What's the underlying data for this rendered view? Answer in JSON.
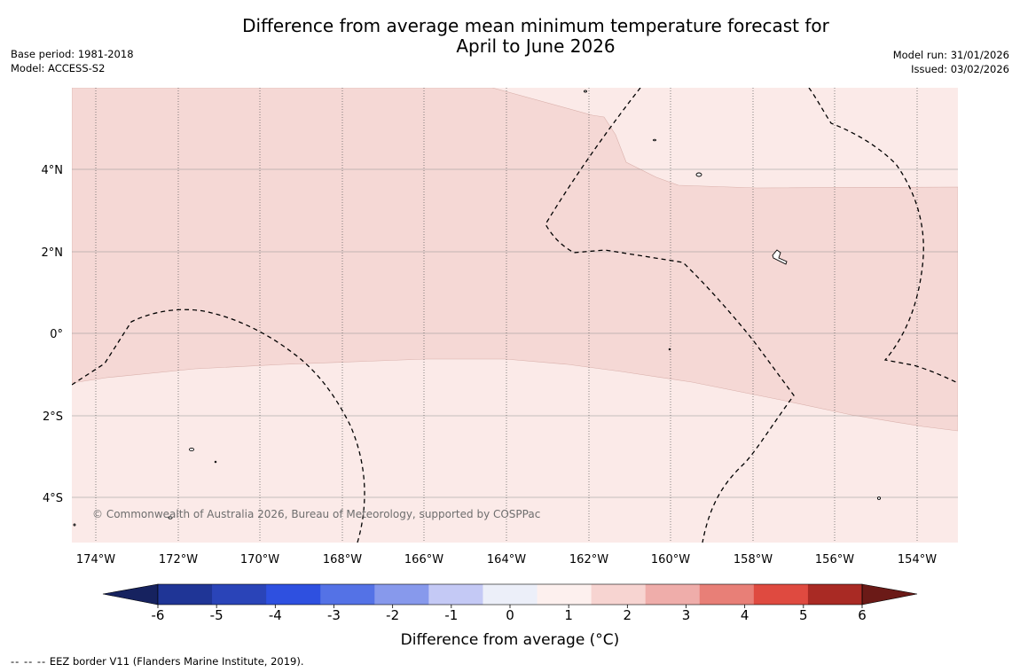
{
  "title": {
    "line1": "Difference from average mean minimum temperature forecast for",
    "line2": "April to June 2026"
  },
  "meta": {
    "base_period": "Base period: 1981-2018",
    "model": "Model: ACCESS-S2",
    "model_run": "Model run: 31/01/2026",
    "issued": "Issued: 03/02/2026"
  },
  "map": {
    "lat_labels": [
      "4°N",
      "2°N",
      "0°",
      "2°S",
      "4°S"
    ],
    "lon_labels": [
      "174°W",
      "172°W",
      "170°W",
      "168°W",
      "166°W",
      "164°W",
      "162°W",
      "160°W",
      "158°W",
      "156°W",
      "154°W"
    ],
    "copyright": "© Commonwealth of Australia 2026, Bureau of Meteorology, supported by COSPPac",
    "fill_colors": {
      "band_0_1": "#fbeae8",
      "band_1_2": "#f5d8d5"
    }
  },
  "colorbar": {
    "label": "Difference from average (°C)",
    "ticks": [
      "-6",
      "-5",
      "-4",
      "-3",
      "-2",
      "-1",
      "0",
      "1",
      "2",
      "3",
      "4",
      "5",
      "6"
    ],
    "colors": [
      "#1f3596",
      "#2a44b8",
      "#2e50e0",
      "#5472e6",
      "#8799ec",
      "#c4c9f5",
      "#eceff9",
      "#fdf0ee",
      "#f7d4d1",
      "#efadaa",
      "#e87f77",
      "#df4a40",
      "#a92a24"
    ],
    "low_extend_color": "#16225f",
    "high_extend_color": "#6b1a17"
  },
  "footer": {
    "legend_symbol": "--  --  --",
    "legend_text": "EEZ border V11 (Flanders Marine Institute, 2019)."
  }
}
